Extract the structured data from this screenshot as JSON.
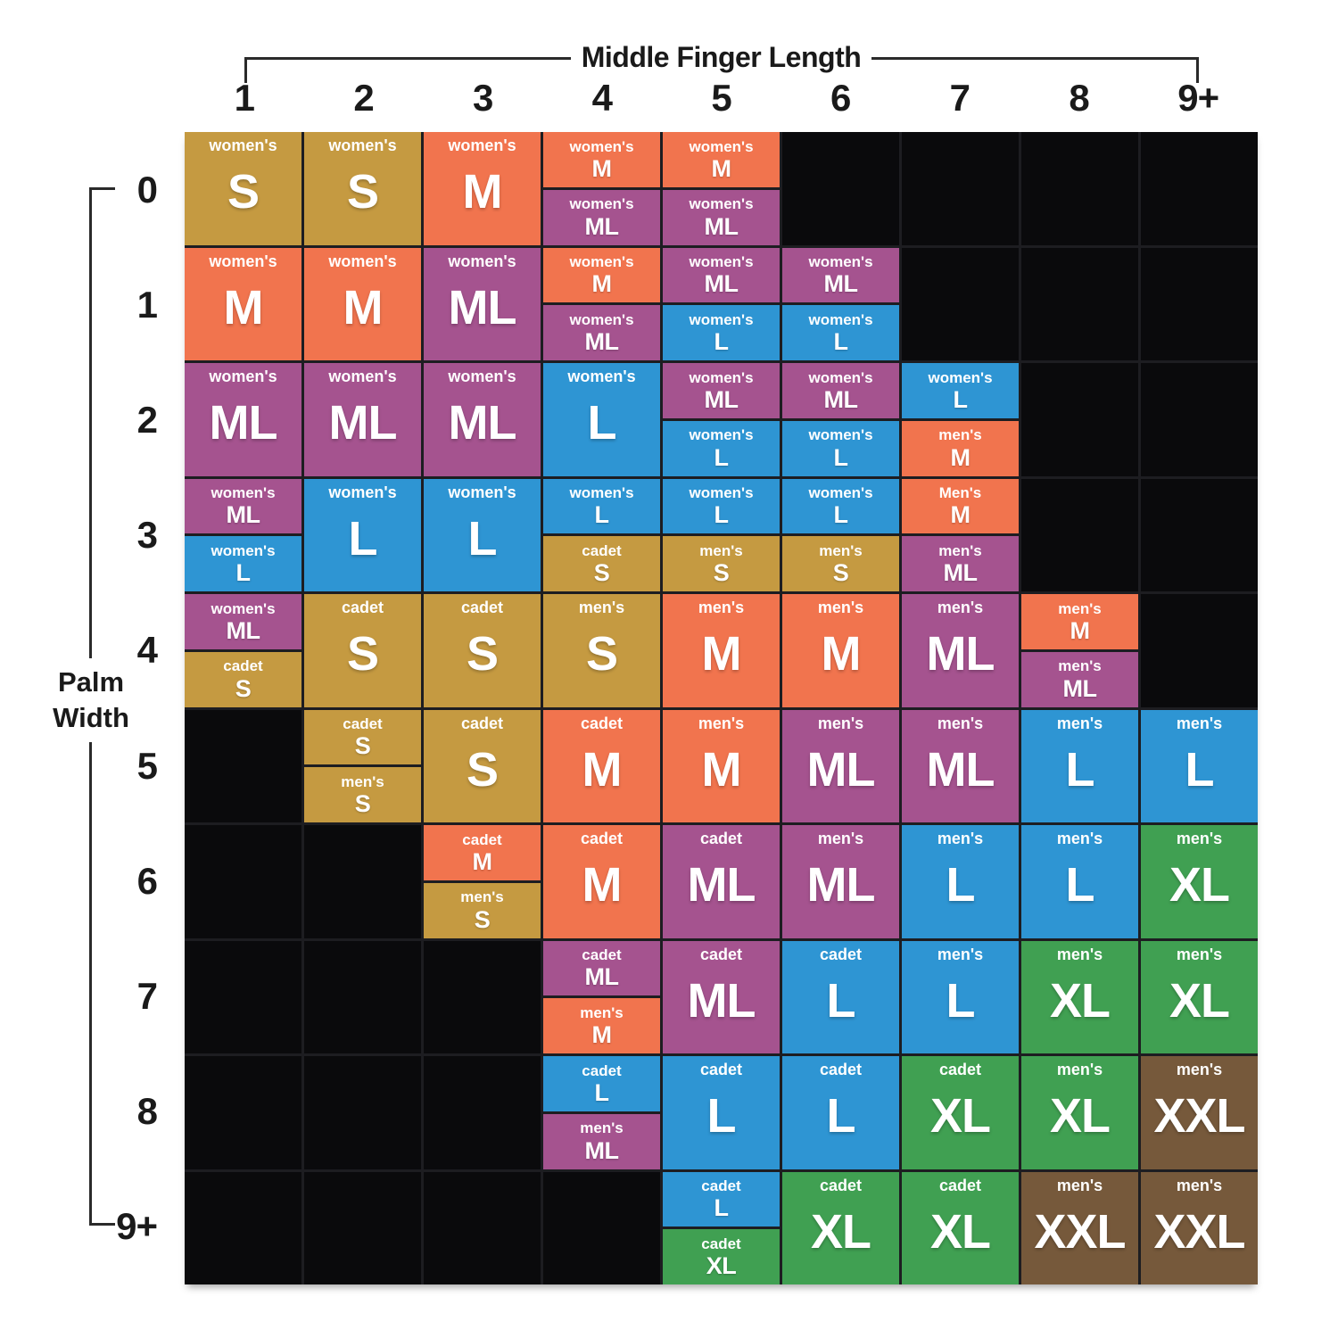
{
  "header": {
    "title": "Middle Finger Length"
  },
  "y_axis": {
    "line1": "Palm",
    "line2": "Width"
  },
  "colors": {
    "page_background": "#ffffff",
    "axis_text": "#1a1a1a",
    "bracket": "#2a2a2a",
    "empty_cell": "#0a0a0c",
    "grid_line": "#1d1d21",
    "cell_text": "#ffffff"
  },
  "chart_data": {
    "type": "heatmap",
    "title": "Middle Finger Length",
    "xlabel": "Middle Finger Length",
    "ylabel": "Palm Width",
    "x_ticks": [
      "1",
      "2",
      "3",
      "4",
      "5",
      "6",
      "7",
      "8",
      "9+"
    ],
    "y_ticks": [
      "0",
      "1",
      "2",
      "3",
      "4",
      "5",
      "6",
      "7",
      "8",
      "9+"
    ],
    "legend_note": "cell color encodes glove size",
    "size_colors": {
      "S": "#c59a41",
      "M": "#f1744e",
      "ML": "#a5538f",
      "L": "#2e95d3",
      "XL": "#40a052",
      "XXL": "#76593b"
    },
    "cells": [
      [
        [
          {
            "category": "women's",
            "size": "S"
          }
        ],
        [
          {
            "category": "women's",
            "size": "S"
          }
        ],
        [
          {
            "category": "women's",
            "size": "M"
          }
        ],
        [
          {
            "category": "women's",
            "size": "M"
          },
          {
            "category": "women's",
            "size": "ML"
          }
        ],
        [
          {
            "category": "women's",
            "size": "M"
          },
          {
            "category": "women's",
            "size": "ML"
          }
        ],
        [],
        [],
        [],
        []
      ],
      [
        [
          {
            "category": "women's",
            "size": "M"
          }
        ],
        [
          {
            "category": "women's",
            "size": "M"
          }
        ],
        [
          {
            "category": "women's",
            "size": "ML"
          }
        ],
        [
          {
            "category": "women's",
            "size": "M"
          },
          {
            "category": "women's",
            "size": "ML"
          }
        ],
        [
          {
            "category": "women's",
            "size": "ML"
          },
          {
            "category": "women's",
            "size": "L"
          }
        ],
        [
          {
            "category": "women's",
            "size": "ML"
          },
          {
            "category": "women's",
            "size": "L"
          }
        ],
        [],
        [],
        []
      ],
      [
        [
          {
            "category": "women's",
            "size": "ML"
          }
        ],
        [
          {
            "category": "women's",
            "size": "ML"
          }
        ],
        [
          {
            "category": "women's",
            "size": "ML"
          }
        ],
        [
          {
            "category": "women's",
            "size": "L"
          }
        ],
        [
          {
            "category": "women's",
            "size": "ML"
          },
          {
            "category": "women's",
            "size": "L"
          }
        ],
        [
          {
            "category": "women's",
            "size": "ML"
          },
          {
            "category": "women's",
            "size": "L"
          }
        ],
        [
          {
            "category": "women's",
            "size": "L"
          },
          {
            "category": "men's",
            "size": "M"
          }
        ],
        [],
        []
      ],
      [
        [
          {
            "category": "women's",
            "size": "ML"
          },
          {
            "category": "women's",
            "size": "L"
          }
        ],
        [
          {
            "category": "women's",
            "size": "L"
          }
        ],
        [
          {
            "category": "women's",
            "size": "L"
          }
        ],
        [
          {
            "category": "women's",
            "size": "L"
          },
          {
            "category": "cadet",
            "size": "S"
          }
        ],
        [
          {
            "category": "women's",
            "size": "L"
          },
          {
            "category": "men's",
            "size": "S"
          }
        ],
        [
          {
            "category": "women's",
            "size": "L"
          },
          {
            "category": "men's",
            "size": "S"
          }
        ],
        [
          {
            "category": "Men's",
            "size": "M"
          },
          {
            "category": "men's",
            "size": "ML"
          }
        ],
        [],
        []
      ],
      [
        [
          {
            "category": "women's",
            "size": "ML"
          },
          {
            "category": "cadet",
            "size": "S"
          }
        ],
        [
          {
            "category": "cadet",
            "size": "S"
          }
        ],
        [
          {
            "category": "cadet",
            "size": "S"
          }
        ],
        [
          {
            "category": "men's",
            "size": "S"
          }
        ],
        [
          {
            "category": "men's",
            "size": "M"
          }
        ],
        [
          {
            "category": "men's",
            "size": "M"
          }
        ],
        [
          {
            "category": "men's",
            "size": "ML"
          }
        ],
        [
          {
            "category": "men's",
            "size": "M"
          },
          {
            "category": "men's",
            "size": "ML"
          }
        ],
        []
      ],
      [
        [],
        [
          {
            "category": "cadet",
            "size": "S"
          },
          {
            "category": "men's",
            "size": "S"
          }
        ],
        [
          {
            "category": "cadet",
            "size": "S"
          }
        ],
        [
          {
            "category": "cadet",
            "size": "M"
          }
        ],
        [
          {
            "category": "men's",
            "size": "M"
          }
        ],
        [
          {
            "category": "men's",
            "size": "ML"
          }
        ],
        [
          {
            "category": "men's",
            "size": "ML"
          }
        ],
        [
          {
            "category": "men's",
            "size": "L"
          }
        ],
        [
          {
            "category": "men's",
            "size": "L"
          }
        ]
      ],
      [
        [],
        [],
        [
          {
            "category": "cadet",
            "size": "M"
          },
          {
            "category": "men's",
            "size": "S"
          }
        ],
        [
          {
            "category": "cadet",
            "size": "M"
          }
        ],
        [
          {
            "category": "cadet",
            "size": "ML"
          }
        ],
        [
          {
            "category": "men's",
            "size": "ML"
          }
        ],
        [
          {
            "category": "men's",
            "size": "L"
          }
        ],
        [
          {
            "category": "men's",
            "size": "L"
          }
        ],
        [
          {
            "category": "men's",
            "size": "XL"
          }
        ]
      ],
      [
        [],
        [],
        [],
        [
          {
            "category": "cadet",
            "size": "ML"
          },
          {
            "category": "men's",
            "size": "M"
          }
        ],
        [
          {
            "category": "cadet",
            "size": "ML"
          }
        ],
        [
          {
            "category": "cadet",
            "size": "L"
          }
        ],
        [
          {
            "category": "men's",
            "size": "L"
          }
        ],
        [
          {
            "category": "men's",
            "size": "XL"
          }
        ],
        [
          {
            "category": "men's",
            "size": "XL"
          }
        ]
      ],
      [
        [],
        [],
        [],
        [
          {
            "category": "cadet",
            "size": "L"
          },
          {
            "category": "men's",
            "size": "ML"
          }
        ],
        [
          {
            "category": "cadet",
            "size": "L"
          }
        ],
        [
          {
            "category": "cadet",
            "size": "L"
          }
        ],
        [
          {
            "category": "cadet",
            "size": "XL"
          }
        ],
        [
          {
            "category": "men's",
            "size": "XL"
          }
        ],
        [
          {
            "category": "men's",
            "size": "XXL"
          }
        ]
      ],
      [
        [],
        [],
        [],
        [],
        [
          {
            "category": "cadet",
            "size": "L"
          },
          {
            "category": "cadet",
            "size": "XL"
          }
        ],
        [
          {
            "category": "cadet",
            "size": "XL"
          }
        ],
        [
          {
            "category": "cadet",
            "size": "XL"
          }
        ],
        [
          {
            "category": "men's",
            "size": "XXL"
          }
        ],
        [
          {
            "category": "men's",
            "size": "XXL"
          }
        ]
      ]
    ]
  }
}
